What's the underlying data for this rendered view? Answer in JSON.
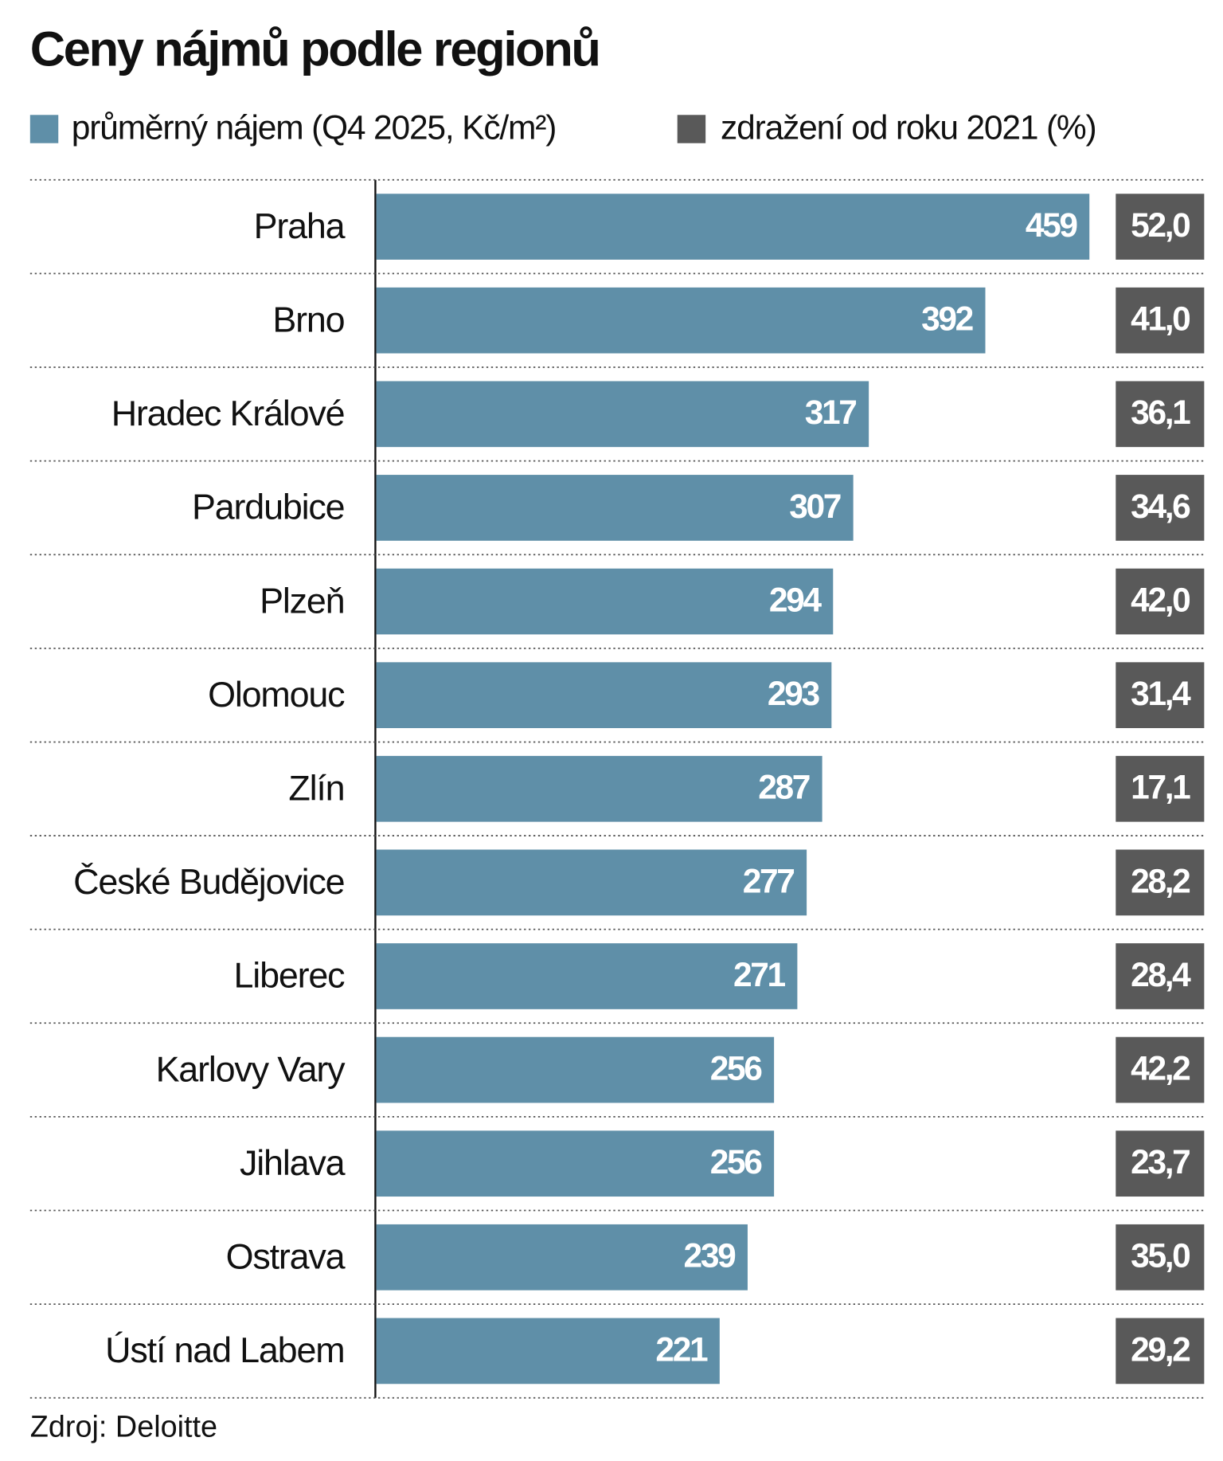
{
  "chart_data": {
    "type": "bar",
    "orientation": "horizontal",
    "title": "Ceny nájmů podle regionů",
    "categories": [
      "Praha",
      "Brno",
      "Hradec Králové",
      "Pardubice",
      "Plzeň",
      "Olomouc",
      "Zlín",
      "České Budějovice",
      "Liberec",
      "Karlovy Vary",
      "Jihlava",
      "Ostrava",
      "Ústí nad Labem"
    ],
    "series": [
      {
        "name": "průměrný nájem (Q4 2025, Kč/m²)",
        "color": "#5f8fa8",
        "values": [
          459,
          392,
          317,
          307,
          294,
          293,
          287,
          277,
          271,
          256,
          256,
          239,
          221
        ]
      },
      {
        "name": "zdražení od roku 2021 (%)",
        "color": "#595959",
        "values": [
          52.0,
          41.0,
          36.1,
          34.6,
          42.0,
          31.4,
          17.1,
          28.2,
          28.4,
          42.2,
          23.7,
          35.0,
          29.2
        ],
        "value_labels": [
          "52,0",
          "41,0",
          "36,1",
          "34,6",
          "42,0",
          "31,4",
          "17,1",
          "28,2",
          "28,4",
          "42,2",
          "23,7",
          "35,0",
          "29,2"
        ]
      }
    ],
    "source": "Zdroj: Deloitte"
  }
}
